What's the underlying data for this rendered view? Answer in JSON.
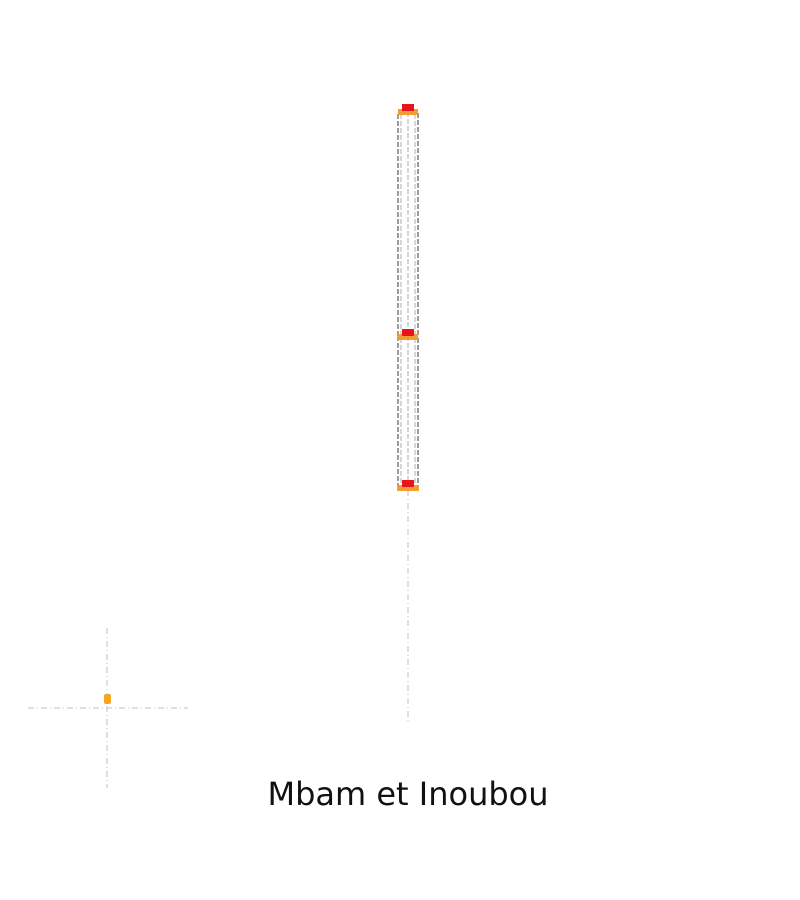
{
  "title": "Mbam et Inoubou",
  "colors": {
    "background": "#ffffff",
    "road_outline": "#666666",
    "guide_line": "#cccccc",
    "node_fill": "#f39c33",
    "node_marker": "#e8141c",
    "point_marker": "#f5a623"
  }
}
